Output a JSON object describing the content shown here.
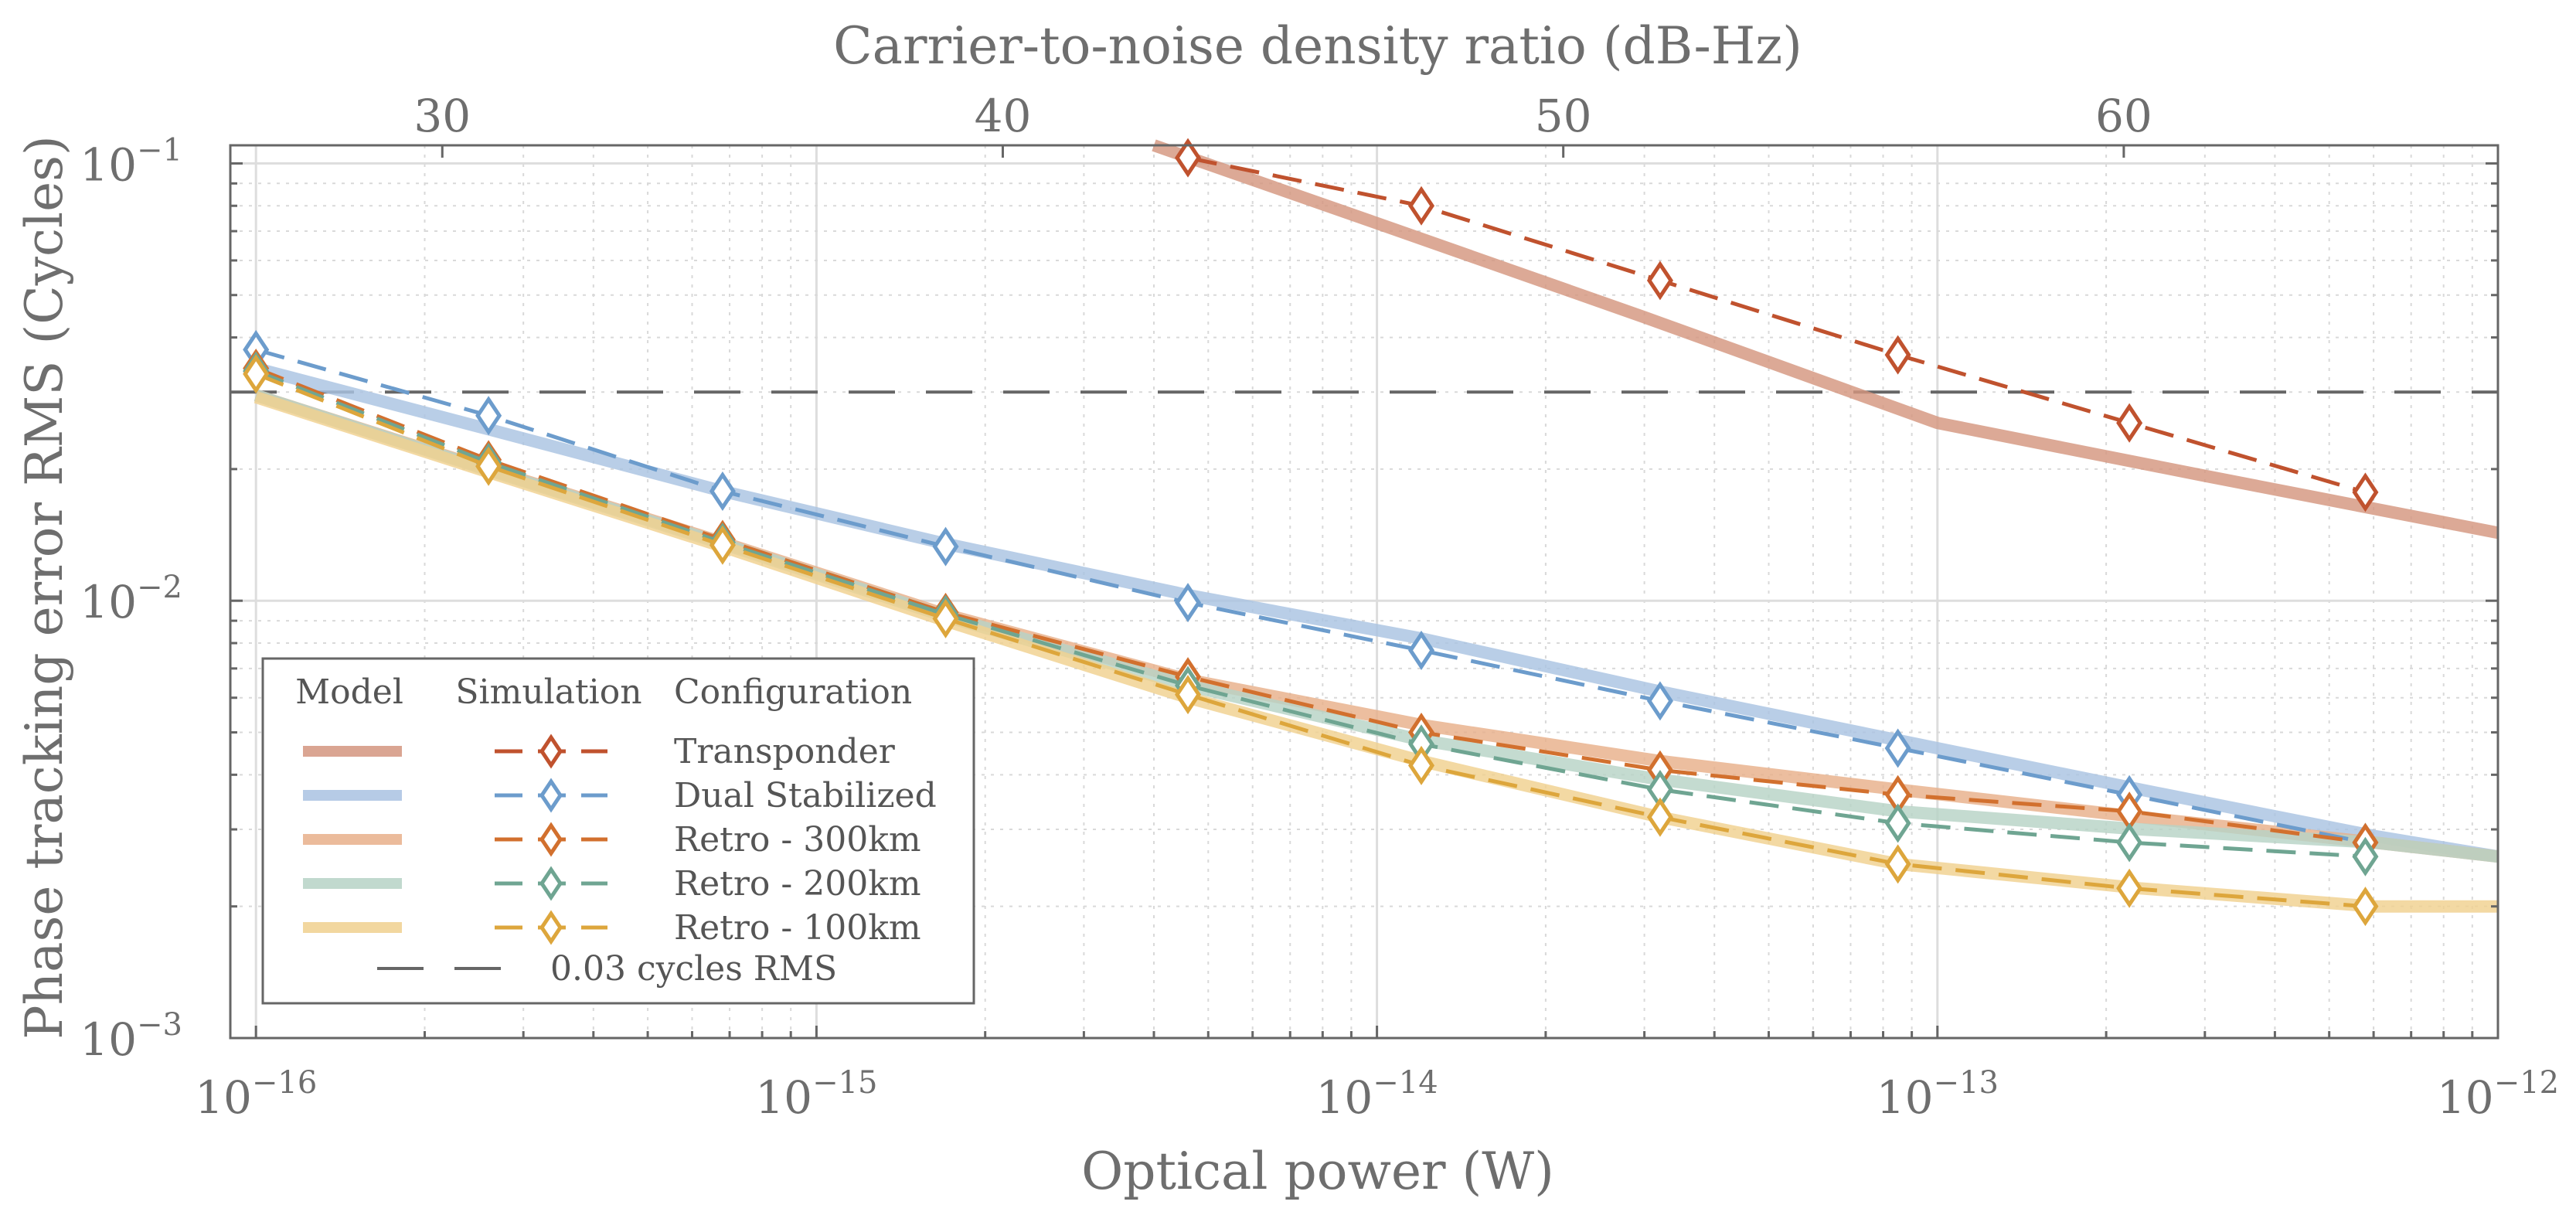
{
  "chart_data": {
    "type": "line",
    "title": "",
    "xlabel": "Optical power (W)",
    "ylabel": "Phase tracking error RMS (Cycles)",
    "x2label": "Carrier-to-noise density ratio (dB-Hz)",
    "xscale": "log",
    "yscale": "log",
    "xlim": [
      9e-17,
      1e-12
    ],
    "ylim": [
      0.001,
      0.11
    ],
    "x_ticks": [
      {
        "exp": -16,
        "base": "10",
        "sup": "−16"
      },
      {
        "exp": -15,
        "base": "10",
        "sup": "−15"
      },
      {
        "exp": -14,
        "base": "10",
        "sup": "−14"
      },
      {
        "exp": -13,
        "base": "10",
        "sup": "−13"
      },
      {
        "exp": -12,
        "base": "10",
        "sup": "−12"
      }
    ],
    "y_ticks": [
      {
        "exp": -3,
        "base": "10",
        "sup": "−3"
      },
      {
        "exp": -2,
        "base": "10",
        "sup": "−2"
      },
      {
        "exp": -1,
        "base": "10",
        "sup": "−1"
      }
    ],
    "x2_ticks": [
      {
        "value": 30,
        "label": "30",
        "x_at": 2.15e-16
      },
      {
        "value": 40,
        "label": "40",
        "x_at": 2.15e-15
      },
      {
        "value": 50,
        "label": "50",
        "x_at": 2.15e-14
      },
      {
        "value": 60,
        "label": "60",
        "x_at": 2.15e-13
      }
    ],
    "grid": true,
    "legend_position": "bottom-left",
    "legend_headers": [
      "Model",
      "Simulation",
      "Configuration"
    ],
    "model_series": [
      {
        "name": "Transponder",
        "color": "#d4967f",
        "x": [
          4e-15,
          1e-14,
          3e-14,
          1e-13,
          3e-13,
          1e-12
        ],
        "y": [
          0.112,
          0.073,
          0.0445,
          0.0255,
          0.0193,
          0.0143
        ]
      },
      {
        "name": "Dual Stabilized",
        "color": "#aac3e2",
        "x": [
          1e-16,
          2.5e-16,
          6.8e-16,
          1.7e-15,
          4.6e-15,
          1.2e-14,
          3.2e-14,
          8.5e-14,
          2.3e-13,
          6e-13,
          1e-12
        ],
        "y": [
          0.034,
          0.025,
          0.0178,
          0.0135,
          0.0103,
          0.0082,
          0.0062,
          0.0048,
          0.0037,
          0.0029,
          0.0026
        ]
      },
      {
        "name": "Retro - 300km",
        "color": "#e8b08a",
        "x": [
          1e-16,
          2.5e-16,
          6.8e-16,
          1.7e-15,
          4.6e-15,
          1.2e-14,
          3.2e-14,
          8.5e-14,
          2.3e-13,
          6e-13,
          1e-12
        ],
        "y": [
          0.0295,
          0.0203,
          0.0136,
          0.0093,
          0.0066,
          0.0052,
          0.0043,
          0.0037,
          0.0032,
          0.0028,
          0.0026
        ]
      },
      {
        "name": "Retro - 200km",
        "color": "#b7d3c6",
        "x": [
          1e-16,
          2.5e-16,
          6.8e-16,
          1.7e-15,
          4.6e-15,
          1.2e-14,
          3.2e-14,
          8.5e-14,
          2.3e-13,
          6e-13,
          1e-12
        ],
        "y": [
          0.0295,
          0.0202,
          0.0135,
          0.0092,
          0.0064,
          0.0048,
          0.0039,
          0.0033,
          0.003,
          0.0028,
          0.0026
        ]
      },
      {
        "name": "Retro - 100km",
        "color": "#f0d18f",
        "x": [
          1e-16,
          2.5e-16,
          6.8e-16,
          1.7e-15,
          4.6e-15,
          1.2e-14,
          3.2e-14,
          8.5e-14,
          2.3e-13,
          6e-13,
          1e-12
        ],
        "y": [
          0.0292,
          0.02,
          0.0133,
          0.009,
          0.006,
          0.0043,
          0.0032,
          0.0025,
          0.0022,
          0.002,
          0.002
        ]
      }
    ],
    "simulation_series": [
      {
        "name": "Transponder",
        "color": "#c0522e",
        "x": [
          4.6e-15,
          1.2e-14,
          3.2e-14,
          8.5e-14,
          2.2e-13,
          5.8e-13
        ],
        "y": [
          0.103,
          0.08,
          0.054,
          0.0365,
          0.0255,
          0.0177
        ]
      },
      {
        "name": "Dual Stabilized",
        "color": "#6c9ccc",
        "x": [
          1e-16,
          2.6e-16,
          6.8e-16,
          1.7e-15,
          4.6e-15,
          1.2e-14,
          3.2e-14,
          8.5e-14,
          2.2e-13,
          5.8e-13
        ],
        "y": [
          0.0375,
          0.0265,
          0.0178,
          0.0133,
          0.0099,
          0.0077,
          0.0059,
          0.0046,
          0.0036,
          0.0028
        ]
      },
      {
        "name": "Retro - 300km",
        "color": "#d2702e",
        "x": [
          1e-16,
          2.6e-16,
          6.8e-16,
          1.7e-15,
          4.6e-15,
          1.2e-14,
          3.2e-14,
          8.5e-14,
          2.2e-13,
          5.8e-13
        ],
        "y": [
          0.034,
          0.021,
          0.0138,
          0.0094,
          0.0067,
          0.005,
          0.0041,
          0.0036,
          0.0033,
          0.0028
        ]
      },
      {
        "name": "Retro - 200km",
        "color": "#6fa592",
        "x": [
          1e-16,
          2.6e-16,
          6.8e-16,
          1.7e-15,
          4.6e-15,
          1.2e-14,
          3.2e-14,
          8.5e-14,
          2.2e-13,
          5.8e-13
        ],
        "y": [
          0.0335,
          0.0207,
          0.0136,
          0.0093,
          0.0064,
          0.0047,
          0.0037,
          0.0031,
          0.0028,
          0.0026
        ]
      },
      {
        "name": "Retro - 100km",
        "color": "#dda63c",
        "x": [
          1e-16,
          2.6e-16,
          6.8e-16,
          1.7e-15,
          4.6e-15,
          1.2e-14,
          3.2e-14,
          8.5e-14,
          2.2e-13,
          5.8e-13
        ],
        "y": [
          0.033,
          0.0203,
          0.0134,
          0.0091,
          0.0061,
          0.0042,
          0.0032,
          0.0025,
          0.0022,
          0.002
        ]
      }
    ],
    "reference_line": {
      "label": "0.03 cycles RMS",
      "value": 0.03,
      "color": "#666666"
    }
  }
}
